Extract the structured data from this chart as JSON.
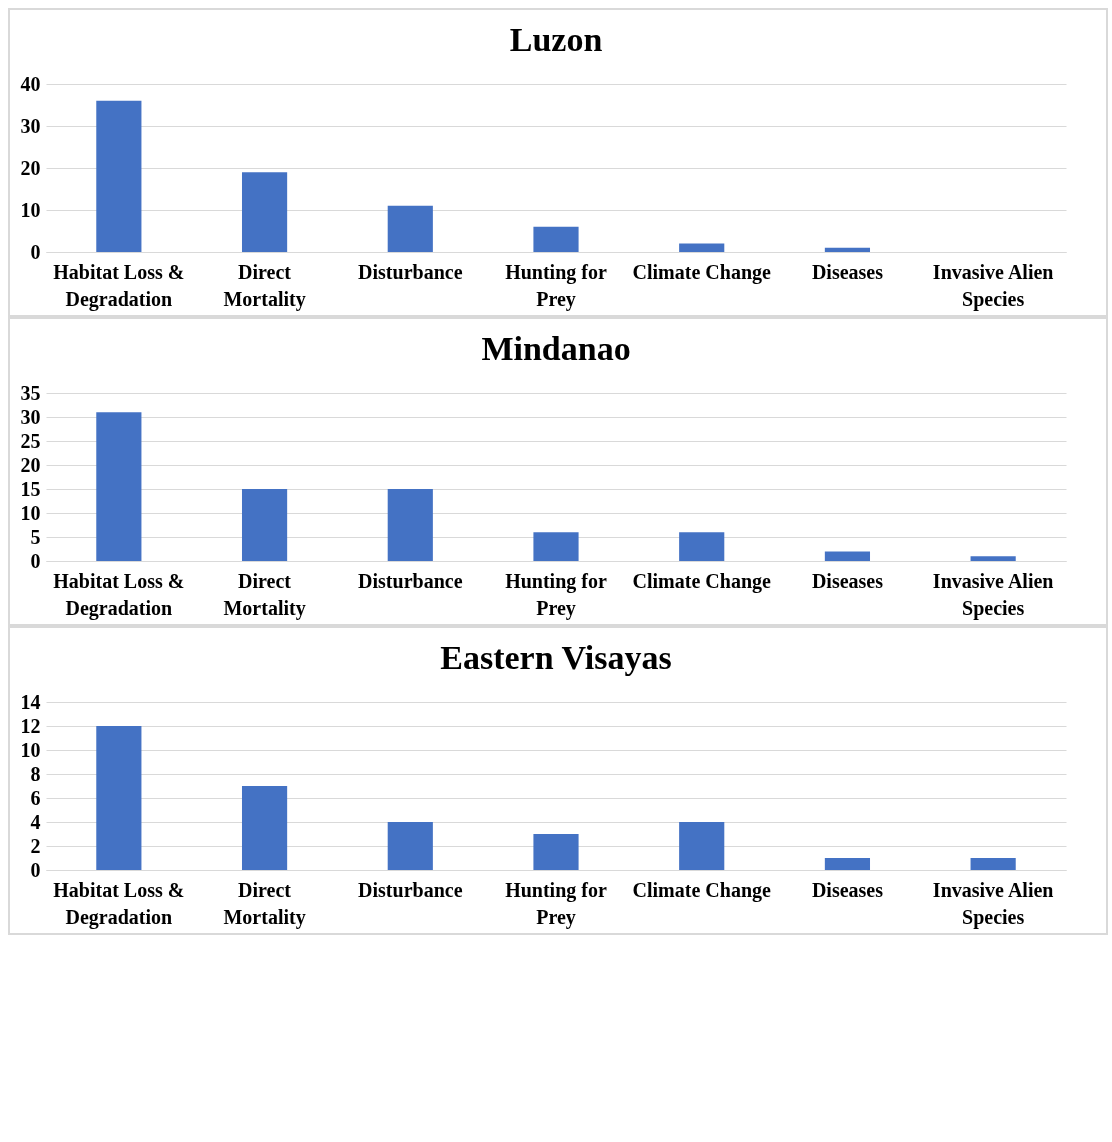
{
  "chart_data": [
    {
      "type": "bar",
      "title": "Luzon",
      "categories": [
        "Habitat Loss & Degradation",
        "Direct Mortality",
        "Disturbance",
        "Hunting for Prey",
        "Climate Change",
        "Diseases",
        "Invasive Alien Species"
      ],
      "values": [
        36,
        19,
        11,
        6,
        2,
        1,
        0
      ],
      "color": "#4472c4",
      "ylim": [
        0,
        40
      ],
      "yticks": [
        0,
        10,
        20,
        30,
        40
      ],
      "grid": "y"
    },
    {
      "type": "bar",
      "title": "Mindanao",
      "categories": [
        "Habitat Loss & Degradation",
        "Direct Mortality",
        "Disturbance",
        "Hunting for Prey",
        "Climate Change",
        "Diseases",
        "Invasive Alien Species"
      ],
      "values": [
        31,
        15,
        15,
        6,
        6,
        2,
        1
      ],
      "color": "#4472c4",
      "ylim": [
        0,
        35
      ],
      "yticks": [
        0,
        5,
        10,
        15,
        20,
        25,
        30,
        35
      ],
      "grid": "y"
    },
    {
      "type": "bar",
      "title": "Eastern Visayas",
      "categories": [
        "Habitat Loss & Degradation",
        "Direct Mortality",
        "Disturbance",
        "Hunting for Prey",
        "Climate Change",
        "Diseases",
        "Invasive Alien Species"
      ],
      "values": [
        12,
        7,
        4,
        3,
        4,
        1,
        1
      ],
      "color": "#4472c4",
      "ylim": [
        0,
        14
      ],
      "yticks": [
        0,
        2,
        4,
        6,
        8,
        10,
        12,
        14
      ],
      "grid": "y"
    }
  ]
}
